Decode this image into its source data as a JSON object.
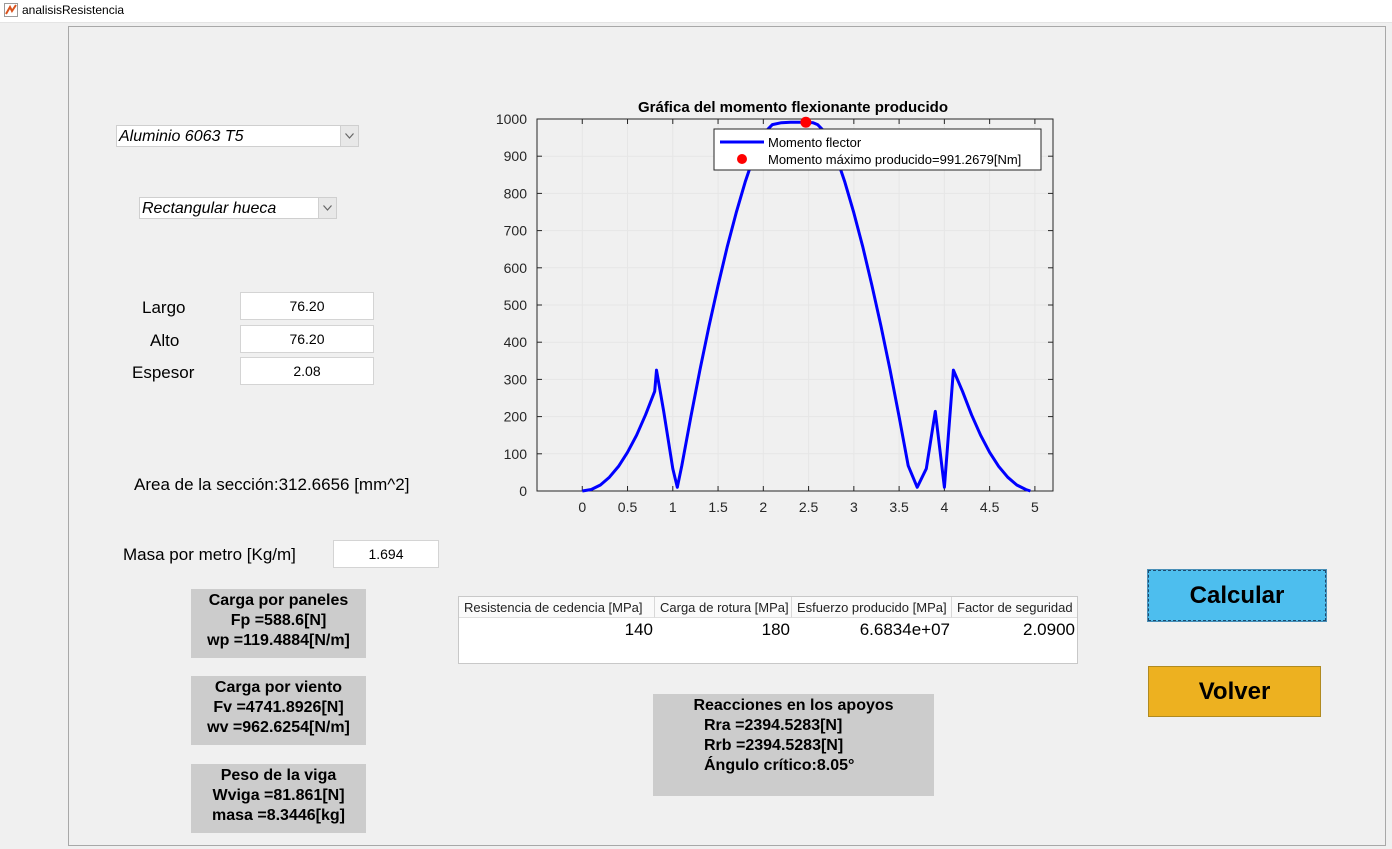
{
  "window": {
    "title": "analisisResistencia"
  },
  "material_select": {
    "value": "Aluminio 6063 T5"
  },
  "section_select": {
    "value": "Rectangular hueca"
  },
  "dimensions": {
    "largo_label": "Largo",
    "largo_value": "76.20",
    "alto_label": "Alto",
    "alto_value": "76.20",
    "espesor_label": "Espesor",
    "espesor_value": "2.08"
  },
  "area_text": "Area de la sección:312.6656 [mm^2]",
  "masa": {
    "label": "Masa por metro [Kg/m]",
    "value": "1.694"
  },
  "carga_paneles": {
    "title": "Carga por paneles",
    "line1": "Fp =588.6[N]",
    "line2": "wp =119.4884[N/m]"
  },
  "carga_viento": {
    "title": "Carga por viento",
    "line1": "Fv =4741.8926[N]",
    "line2": "wv =962.6254[N/m]"
  },
  "peso_viga": {
    "title": "Peso de la viga",
    "line1": "Wviga =81.861[N]",
    "line2": "masa =8.3446[kg]"
  },
  "reacciones": {
    "title": "Reacciones en los apoyos",
    "line1": "Rra =2394.5283[N]",
    "line2": "Rrb =2394.5283[N]",
    "line3": "Ángulo crítico:8.05°"
  },
  "table": {
    "headers": [
      "Resistencia de cedencia [MPa]",
      "Carga de rotura [MPa]",
      "Esfuerzo producido [MPa]",
      "Factor de seguridad"
    ],
    "row": [
      "140",
      "180",
      "6.6834e+07",
      "2.0900"
    ]
  },
  "buttons": {
    "calcular": "Calcular",
    "volver": "Volver"
  },
  "colors": {
    "calcular": "#4dbeee",
    "volver": "#edb120",
    "curve": "#0000ff",
    "max_marker": "#ff0000"
  },
  "icons": {
    "dropdown_arrow": "chevron-down-icon",
    "app": "matlab-icon"
  },
  "chart_data": {
    "type": "line",
    "title": "Gráfica del momento flexionante producido",
    "xlim": [
      -0.5,
      5.2
    ],
    "ylim": [
      0,
      1000
    ],
    "xticks": [
      0,
      0.5,
      1,
      1.5,
      2,
      2.5,
      3,
      3.5,
      4,
      4.5,
      5
    ],
    "yticks": [
      0,
      100,
      200,
      300,
      400,
      500,
      600,
      700,
      800,
      900,
      1000
    ],
    "grid": true,
    "legend_position": "top-right",
    "series": [
      {
        "name": "Momento flector",
        "x": [
          0,
          0.1,
          0.2,
          0.3,
          0.4,
          0.5,
          0.6,
          0.7,
          0.8,
          0.82,
          0.9,
          1.0,
          1.05,
          1.1,
          1.2,
          1.3,
          1.4,
          1.5,
          1.6,
          1.7,
          1.8,
          1.9,
          2.0,
          2.1,
          2.2,
          2.3,
          2.4,
          2.47,
          2.55,
          2.6,
          2.7,
          2.8,
          2.9,
          3.0,
          3.1,
          3.2,
          3.3,
          3.4,
          3.5,
          3.6,
          3.7,
          3.8,
          3.9,
          4.0,
          4.1,
          4.2,
          4.3,
          4.4,
          4.5,
          4.6,
          4.7,
          4.8,
          4.9,
          4.95
        ],
        "y": [
          0,
          4,
          16,
          37,
          66,
          104,
          150,
          205,
          268,
          325,
          214,
          60,
          10,
          68,
          200,
          325,
          443,
          553,
          655,
          748,
          831,
          903,
          960,
          985,
          990,
          991,
          991,
          991,
          990,
          985,
          960,
          903,
          831,
          748,
          655,
          553,
          443,
          325,
          200,
          68,
          10,
          60,
          214,
          10,
          325,
          268,
          205,
          150,
          104,
          66,
          37,
          16,
          4,
          0
        ]
      },
      {
        "name": "Momento máximo producido=991.2679[Nm]",
        "x": [
          2.47
        ],
        "y": [
          991.2679
        ]
      }
    ]
  }
}
